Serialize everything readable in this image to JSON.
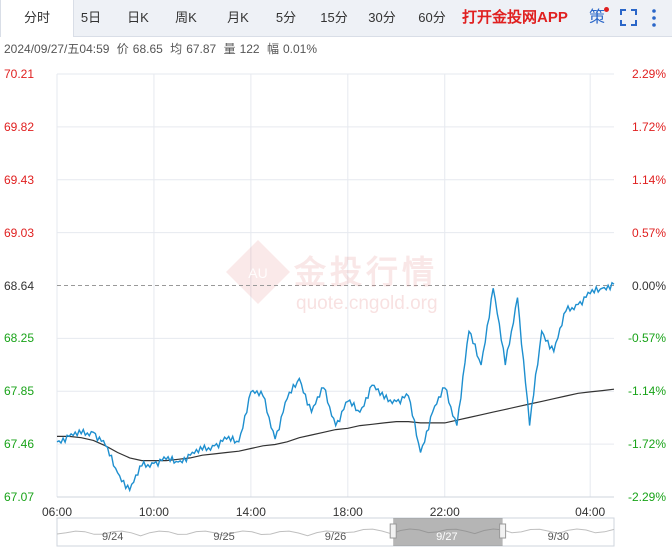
{
  "tabs": [
    {
      "label": "分时",
      "active": true
    },
    {
      "label": "5日"
    },
    {
      "label": "日K"
    },
    {
      "label": "周K"
    },
    {
      "label": "月K"
    },
    {
      "label": "5分"
    },
    {
      "label": "15分"
    },
    {
      "label": "30分"
    },
    {
      "label": "60分"
    }
  ],
  "app_link": "打开金投网APP",
  "strategy_label": "策",
  "icons": {
    "fullscreen": "fullscreen-icon",
    "more": "more-vertical-icon"
  },
  "info": {
    "datetime": "2024/09/27/五04:59",
    "price_label": "价",
    "price": "68.65",
    "avg_label": "均",
    "avg": "67.87",
    "volume_label": "量",
    "volume": "122",
    "change_label": "幅",
    "change": "0.01%"
  },
  "watermark": {
    "cn": "金投行情",
    "en": "quote.cngold.org",
    "badge": "AU"
  },
  "colors": {
    "up": "#e02020",
    "down": "#19a319",
    "price_line": "#1e8fcf",
    "avg_line": "#333333"
  },
  "chart_data": {
    "type": "line",
    "title": "",
    "xlabel": "",
    "ylabel": "",
    "ylim": [
      67.07,
      70.21
    ],
    "y_ticks": [
      "70.21",
      "69.82",
      "69.43",
      "69.03",
      "68.64",
      "68.25",
      "67.85",
      "67.46",
      "67.07"
    ],
    "y_pct_ticks": [
      "2.29%",
      "1.72%",
      "1.14%",
      "0.57%",
      "0.00%",
      "-0.57%",
      "-1.14%",
      "-1.72%",
      "-2.29%"
    ],
    "reference_price": 68.64,
    "x_ticks": [
      "06:00",
      "10:00",
      "14:00",
      "18:00",
      "22:00",
      "04:00"
    ],
    "x": [
      "06:00",
      "06:30",
      "07:00",
      "07:30",
      "08:00",
      "08:30",
      "09:00",
      "09:30",
      "10:00",
      "10:30",
      "11:00",
      "11:30",
      "12:00",
      "12:30",
      "13:00",
      "13:30",
      "14:00",
      "14:30",
      "15:00",
      "15:30",
      "16:00",
      "16:30",
      "17:00",
      "17:30",
      "18:00",
      "18:30",
      "19:00",
      "19:30",
      "20:00",
      "20:30",
      "21:00",
      "21:30",
      "22:00",
      "22:30",
      "23:00",
      "23:30",
      "00:00",
      "00:30",
      "01:00",
      "01:30",
      "02:00",
      "02:30",
      "03:00",
      "03:30",
      "04:00",
      "04:30",
      "04:59"
    ],
    "series": [
      {
        "values": [
          67.48,
          67.52,
          67.54,
          67.55,
          67.45,
          67.25,
          67.12,
          67.3,
          67.32,
          67.35,
          67.33,
          67.38,
          67.42,
          67.45,
          67.5,
          67.48,
          67.85,
          67.82,
          67.5,
          67.8,
          67.95,
          67.7,
          67.88,
          67.6,
          67.78,
          67.7,
          67.9,
          67.8,
          67.78,
          67.82,
          67.4,
          67.7,
          67.88,
          67.6,
          68.3,
          68.05,
          68.62,
          68.05,
          68.55,
          67.6,
          68.3,
          68.15,
          68.45,
          68.5,
          68.58,
          68.62,
          68.65
        ]
      },
      {
        "values": [
          67.52,
          67.52,
          67.51,
          67.49,
          67.45,
          67.4,
          67.36,
          67.34,
          67.34,
          67.34,
          67.35,
          67.36,
          67.38,
          67.39,
          67.4,
          67.41,
          67.43,
          67.45,
          67.46,
          67.48,
          67.51,
          67.53,
          67.55,
          67.57,
          67.58,
          67.6,
          67.61,
          67.62,
          67.63,
          67.63,
          67.62,
          67.62,
          67.62,
          67.64,
          67.66,
          67.68,
          67.7,
          67.72,
          67.74,
          67.76,
          67.78,
          67.8,
          67.82,
          67.84,
          67.85,
          67.86,
          67.87
        ]
      }
    ],
    "navigator": {
      "labels": [
        "9/24",
        "9/25",
        "9/26",
        "9/27",
        "9/30"
      ],
      "selected": "9/27"
    }
  }
}
